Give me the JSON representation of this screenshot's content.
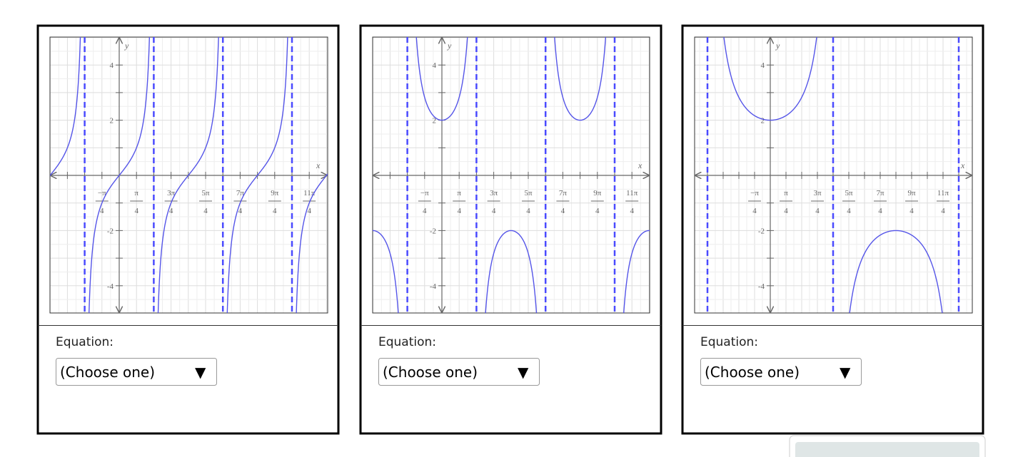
{
  "panels": [
    {
      "graph": {
        "x_label": "x",
        "y_label": "y",
        "y_ticks": [
          "4",
          "2",
          "-2",
          "-4"
        ],
        "x_ticks": [
          {
            "num": "−π",
            "den": "4"
          },
          {
            "num": "π",
            "den": "4"
          },
          {
            "num": "3π",
            "den": "4"
          },
          {
            "num": "5π",
            "den": "4"
          },
          {
            "num": "7π",
            "den": "4"
          },
          {
            "num": "9π",
            "den": "4"
          },
          {
            "num": "11π",
            "den": "4"
          }
        ]
      },
      "equation_label": "Equation:",
      "select": {
        "text": "(Choose one)",
        "arrow": "▼"
      }
    },
    {
      "graph": {
        "x_label": "x",
        "y_label": "y",
        "y_ticks": [
          "4",
          "2",
          "-2",
          "-4"
        ],
        "x_ticks": [
          {
            "num": "−π",
            "den": "4"
          },
          {
            "num": "π",
            "den": "4"
          },
          {
            "num": "3π",
            "den": "4"
          },
          {
            "num": "5π",
            "den": "4"
          },
          {
            "num": "7π",
            "den": "4"
          },
          {
            "num": "9π",
            "den": "4"
          },
          {
            "num": "11π",
            "den": "4"
          }
        ]
      },
      "equation_label": "Equation:",
      "select": {
        "text": "(Choose one)",
        "arrow": "▼"
      }
    },
    {
      "graph": {
        "x_label": "x",
        "y_label": "y",
        "y_ticks": [
          "4",
          "2",
          "-2",
          "-4"
        ],
        "x_ticks": [
          {
            "num": "−π",
            "den": "4"
          },
          {
            "num": "π",
            "den": "4"
          },
          {
            "num": "3π",
            "den": "4"
          },
          {
            "num": "5π",
            "den": "4"
          },
          {
            "num": "7π",
            "den": "4"
          },
          {
            "num": "9π",
            "den": "4"
          },
          {
            "num": "11π",
            "den": "4"
          }
        ]
      },
      "equation_label": "Equation:",
      "select": {
        "text": "(Choose one)",
        "arrow": "▼"
      }
    }
  ]
}
